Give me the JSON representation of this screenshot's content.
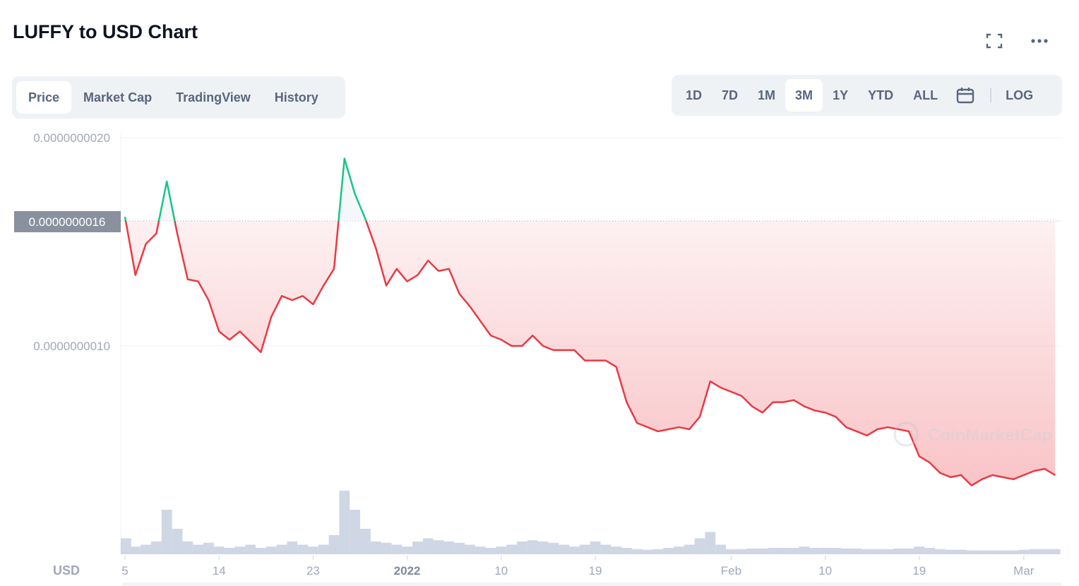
{
  "header": {
    "title": "LUFFY to USD Chart",
    "fullscreen_icon": "fullscreen-icon",
    "more_icon": "more-dots-icon"
  },
  "tabs": [
    {
      "label": "Price",
      "active": true
    },
    {
      "label": "Market Cap"
    },
    {
      "label": "TradingView"
    },
    {
      "label": "History"
    }
  ],
  "ranges": [
    {
      "label": "1D"
    },
    {
      "label": "7D"
    },
    {
      "label": "1M"
    },
    {
      "label": "3M",
      "active": true
    },
    {
      "label": "1Y"
    },
    {
      "label": "YTD"
    },
    {
      "label": "ALL"
    }
  ],
  "calendar_icon": "calendar-icon",
  "log_label": "LOG",
  "watermark": "CoinMarketCap",
  "chart_data": {
    "type": "line",
    "title": "",
    "currency_label": "USD",
    "ylim": [
      0.0,
      2e-09
    ],
    "y_ticks": [
      {
        "value": 2e-09,
        "label": "0.0000000020"
      },
      {
        "value": 1e-09,
        "label": "0.0000000010"
      }
    ],
    "baseline": {
      "value": 1.6e-09,
      "label": "0.0000000016"
    },
    "x_ticks": [
      {
        "date": "2021-12-05",
        "label": "5"
      },
      {
        "date": "2021-12-14",
        "label": "14"
      },
      {
        "date": "2021-12-23",
        "label": "23"
      },
      {
        "date": "2022-01-01",
        "label": "2022",
        "bold": true
      },
      {
        "date": "2022-01-10",
        "label": "10"
      },
      {
        "date": "2022-01-19",
        "label": "19"
      },
      {
        "date": "2022-02-01",
        "label": "Feb"
      },
      {
        "date": "2022-02-10",
        "label": "10"
      },
      {
        "date": "2022-02-19",
        "label": "19"
      },
      {
        "date": "2022-03-01",
        "label": "Mar"
      }
    ],
    "colors": {
      "up": "#16c784",
      "down": "#ea3943",
      "volume": "#cfd6e4",
      "baseline_label_bg": "#8a919e"
    },
    "start_date": "2021-12-05",
    "x": [
      "2021-12-05",
      "2021-12-06",
      "2021-12-07",
      "2021-12-08",
      "2021-12-09",
      "2021-12-10",
      "2021-12-11",
      "2021-12-12",
      "2021-12-13",
      "2021-12-14",
      "2021-12-15",
      "2021-12-16",
      "2021-12-17",
      "2021-12-18",
      "2021-12-19",
      "2021-12-20",
      "2021-12-21",
      "2021-12-22",
      "2021-12-23",
      "2021-12-24",
      "2021-12-25",
      "2021-12-26",
      "2021-12-27",
      "2021-12-28",
      "2021-12-29",
      "2021-12-30",
      "2021-12-31",
      "2022-01-01",
      "2022-01-02",
      "2022-01-03",
      "2022-01-04",
      "2022-01-05",
      "2022-01-06",
      "2022-01-07",
      "2022-01-08",
      "2022-01-09",
      "2022-01-10",
      "2022-01-11",
      "2022-01-12",
      "2022-01-13",
      "2022-01-14",
      "2022-01-15",
      "2022-01-16",
      "2022-01-17",
      "2022-01-18",
      "2022-01-19",
      "2022-01-20",
      "2022-01-21",
      "2022-01-22",
      "2022-01-23",
      "2022-01-24",
      "2022-01-25",
      "2022-01-26",
      "2022-01-27",
      "2022-01-28",
      "2022-01-29",
      "2022-01-30",
      "2022-01-31",
      "2022-02-01",
      "2022-02-02",
      "2022-02-03",
      "2022-02-04",
      "2022-02-05",
      "2022-02-06",
      "2022-02-07",
      "2022-02-08",
      "2022-02-09",
      "2022-02-10",
      "2022-02-11",
      "2022-02-12",
      "2022-02-13",
      "2022-02-14",
      "2022-02-15",
      "2022-02-16",
      "2022-02-17",
      "2022-02-18",
      "2022-02-19",
      "2022-02-20",
      "2022-02-21",
      "2022-02-22",
      "2022-02-23",
      "2022-02-24",
      "2022-02-25",
      "2022-02-26",
      "2022-02-27",
      "2022-02-28",
      "2022-03-01",
      "2022-03-02",
      "2022-03-03",
      "2022-03-04"
    ],
    "price_e9": [
      1.62,
      1.34,
      1.49,
      1.54,
      1.79,
      1.54,
      1.32,
      1.31,
      1.22,
      1.07,
      1.03,
      1.07,
      1.02,
      0.97,
      1.14,
      1.24,
      1.22,
      1.24,
      1.2,
      1.29,
      1.37,
      1.9,
      1.73,
      1.61,
      1.47,
      1.29,
      1.37,
      1.31,
      1.34,
      1.41,
      1.36,
      1.37,
      1.25,
      1.19,
      1.12,
      1.05,
      1.03,
      1.0,
      1.0,
      1.05,
      1.0,
      0.98,
      0.98,
      0.98,
      0.93,
      0.93,
      0.93,
      0.9,
      0.73,
      0.63,
      0.61,
      0.59,
      0.6,
      0.61,
      0.6,
      0.66,
      0.83,
      0.8,
      0.78,
      0.76,
      0.71,
      0.68,
      0.73,
      0.73,
      0.74,
      0.71,
      0.69,
      0.68,
      0.66,
      0.61,
      0.59,
      0.57,
      0.6,
      0.61,
      0.6,
      0.59,
      0.47,
      0.44,
      0.39,
      0.37,
      0.38,
      0.33,
      0.36,
      0.38,
      0.37,
      0.36,
      0.38,
      0.4,
      0.41,
      0.38
    ],
    "volume_relative": [
      0.25,
      0.12,
      0.15,
      0.2,
      0.7,
      0.4,
      0.2,
      0.15,
      0.18,
      0.12,
      0.1,
      0.12,
      0.15,
      0.1,
      0.12,
      0.15,
      0.2,
      0.15,
      0.12,
      0.15,
      0.3,
      1.0,
      0.7,
      0.4,
      0.2,
      0.18,
      0.15,
      0.12,
      0.2,
      0.25,
      0.22,
      0.2,
      0.18,
      0.15,
      0.12,
      0.1,
      0.12,
      0.15,
      0.2,
      0.22,
      0.2,
      0.18,
      0.15,
      0.12,
      0.15,
      0.2,
      0.15,
      0.12,
      0.1,
      0.08,
      0.07,
      0.08,
      0.1,
      0.12,
      0.15,
      0.25,
      0.35,
      0.15,
      0.08,
      0.08,
      0.09,
      0.09,
      0.1,
      0.1,
      0.1,
      0.12,
      0.1,
      0.1,
      0.1,
      0.09,
      0.09,
      0.08,
      0.08,
      0.08,
      0.09,
      0.09,
      0.12,
      0.1,
      0.08,
      0.07,
      0.07,
      0.06,
      0.06,
      0.06,
      0.06,
      0.06,
      0.07,
      0.08,
      0.08,
      0.08
    ]
  }
}
